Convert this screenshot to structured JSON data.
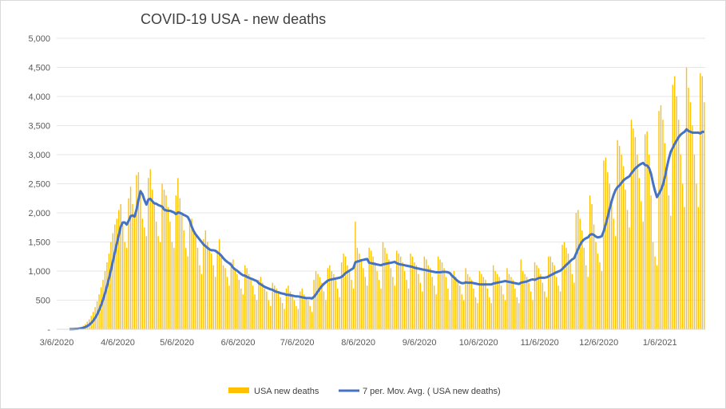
{
  "chart_data": {
    "type": "bar",
    "title": "COVID-19 USA - new deaths",
    "start_date": "3/6/2020",
    "x_tick_labels": [
      "3/6/2020",
      "4/6/2020",
      "5/6/2020",
      "6/6/2020",
      "7/6/2020",
      "8/6/2020",
      "9/6/2020",
      "10/6/2020",
      "11/6/2020",
      "12/6/2020",
      "1/6/2021"
    ],
    "y_tick_labels": [
      "-",
      "500",
      "1,000",
      "1,500",
      "2,000",
      "2,500",
      "3,000",
      "3,500",
      "4,000",
      "4,500",
      "5,000"
    ],
    "ylim": [
      0,
      5000
    ],
    "grid": true,
    "legend_position": "bottom",
    "series": [
      {
        "name": "USA new deaths",
        "kind": "bar",
        "color": "#ffc000",
        "values": [
          0,
          1,
          1,
          2,
          2,
          3,
          5,
          6,
          10,
          15,
          20,
          30,
          40,
          60,
          90,
          130,
          170,
          230,
          300,
          380,
          480,
          600,
          720,
          850,
          1000,
          1150,
          1300,
          1500,
          1650,
          1800,
          1900,
          2050,
          2150,
          1800,
          1500,
          1400,
          2250,
          2450,
          2150,
          2000,
          2650,
          2700,
          2400,
          1900,
          1750,
          1600,
          2600,
          2750,
          2400,
          2150,
          1850,
          1600,
          1500,
          2500,
          2400,
          2300,
          2100,
          1850,
          1500,
          1400,
          2300,
          2600,
          2250,
          2000,
          1700,
          1400,
          1250,
          1850,
          1900,
          1700,
          1600,
          1400,
          1100,
          950,
          1550,
          1700,
          1500,
          1400,
          1300,
          1100,
          900,
          1350,
          1550,
          1250,
          1100,
          1050,
          900,
          750,
          1150,
          1200,
          1050,
          950,
          850,
          700,
          600,
          1100,
          1050,
          950,
          850,
          750,
          600,
          500,
          850,
          900,
          800,
          700,
          650,
          500,
          400,
          800,
          750,
          700,
          650,
          550,
          450,
          350,
          700,
          750,
          650,
          600,
          500,
          400,
          350,
          650,
          700,
          600,
          550,
          500,
          400,
          300,
          850,
          1000,
          950,
          900,
          800,
          650,
          500,
          1050,
          1100,
          1000,
          950,
          850,
          700,
          550,
          1150,
          1300,
          1250,
          1100,
          1000,
          850,
          700,
          1850,
          1400,
          1300,
          1200,
          1050,
          900,
          750,
          1400,
          1350,
          1250,
          1150,
          1000,
          850,
          700,
          1500,
          1400,
          1300,
          1200,
          1050,
          900,
          750,
          1350,
          1300,
          1250,
          1150,
          1000,
          850,
          700,
          1300,
          1250,
          1150,
          1100,
          950,
          800,
          650,
          1250,
          1200,
          1100,
          1050,
          900,
          750,
          600,
          1250,
          1200,
          1150,
          1050,
          900,
          700,
          500,
          950,
          1000,
          900,
          850,
          750,
          600,
          500,
          1050,
          950,
          900,
          850,
          700,
          550,
          450,
          1000,
          950,
          900,
          850,
          700,
          550,
          450,
          1100,
          1000,
          950,
          900,
          750,
          600,
          500,
          1050,
          950,
          900,
          850,
          700,
          550,
          450,
          1200,
          1000,
          950,
          900,
          800,
          650,
          500,
          1150,
          1100,
          1050,
          950,
          800,
          650,
          550,
          1250,
          1250,
          1150,
          1100,
          900,
          750,
          650,
          1450,
          1500,
          1400,
          1300,
          1150,
          950,
          800,
          2000,
          2050,
          1900,
          1700,
          1400,
          1100,
          900,
          2300,
          2150,
          1800,
          1500,
          1300,
          1150,
          1000,
          2900,
          2950,
          2700,
          2500,
          2200,
          1900,
          1600,
          3250,
          3150,
          3000,
          2800,
          2400,
          2050,
          1750,
          3600,
          3450,
          3300,
          3000,
          2600,
          2200,
          1850,
          3350,
          3400,
          3000,
          2300,
          1500,
          1250,
          1100,
          3750,
          3850,
          3600,
          3200,
          2700,
          2300,
          1950,
          4200,
          4350,
          4000,
          3600,
          3000,
          2500,
          2100,
          4500,
          4150,
          3900,
          3500,
          3000,
          2500,
          2100,
          4400,
          4350,
          3900
        ]
      },
      {
        "name": "7 per. Mov. Avg. ( USA new deaths)",
        "kind": "line",
        "color": "#4472c4"
      }
    ]
  }
}
